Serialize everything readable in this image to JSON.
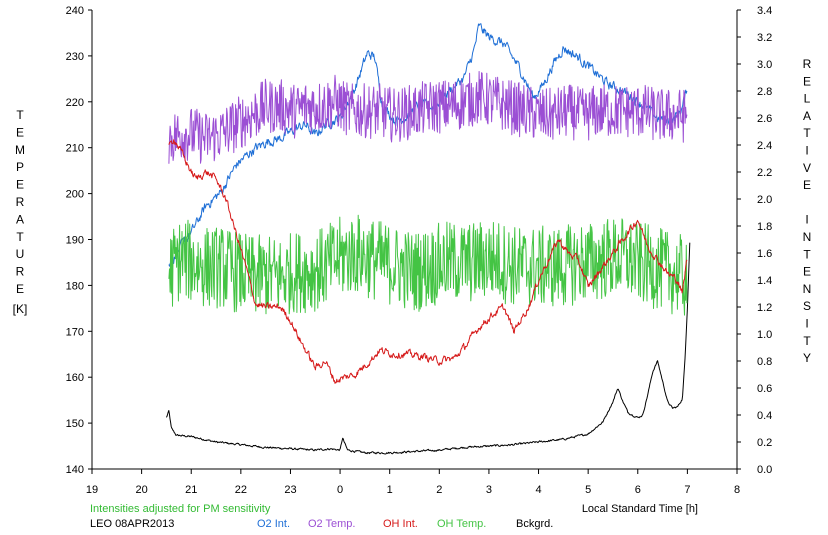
{
  "chart_data": {
    "type": "line",
    "left_axis": {
      "label": "TEMPERATURE",
      "unit": "[K]",
      "range": [
        140,
        240
      ],
      "ticks": [
        140,
        150,
        160,
        170,
        180,
        190,
        200,
        210,
        220,
        230,
        240
      ]
    },
    "right_axis": {
      "label": "RELATIVE INTENSITY",
      "range": [
        0.0,
        3.4
      ],
      "ticks": [
        "0.0",
        "0.2",
        "0.4",
        "0.6",
        "0.8",
        "1.0",
        "1.2",
        "1.4",
        "1.6",
        "1.8",
        "2.0",
        "2.2",
        "2.4",
        "2.6",
        "2.8",
        "3.0",
        "3.2",
        "3.4"
      ]
    },
    "x_axis": {
      "label": "Local Standard Time [h]",
      "range": [
        19,
        32
      ],
      "ticks": [
        19,
        20,
        21,
        22,
        23,
        24,
        25,
        26,
        27,
        28,
        29,
        30,
        31,
        32
      ],
      "tick_labels": [
        "19",
        "20",
        "21",
        "22",
        "23",
        "0",
        "1",
        "2",
        "3",
        "4",
        "5",
        "6",
        "7",
        "8"
      ]
    },
    "note": "Intensities adjusted for PM sensitivity",
    "caption": "LEO 08APR2013",
    "series": [
      {
        "name": "O2 Int.",
        "axis": "right",
        "color": "#1f6fd6",
        "noise": 0.03,
        "points": [
          [
            20.55,
            1.5
          ],
          [
            20.8,
            1.65
          ],
          [
            21.0,
            1.75
          ],
          [
            21.3,
            1.95
          ],
          [
            21.6,
            2.05
          ],
          [
            21.9,
            2.25
          ],
          [
            22.2,
            2.35
          ],
          [
            22.5,
            2.42
          ],
          [
            22.8,
            2.45
          ],
          [
            23.1,
            2.52
          ],
          [
            23.3,
            2.55
          ],
          [
            23.5,
            2.47
          ],
          [
            23.7,
            2.55
          ],
          [
            24.0,
            2.6
          ],
          [
            24.3,
            2.82
          ],
          [
            24.55,
            3.08
          ],
          [
            24.7,
            3.05
          ],
          [
            24.85,
            2.7
          ],
          [
            25.1,
            2.58
          ],
          [
            25.3,
            2.6
          ],
          [
            25.6,
            2.7
          ],
          [
            25.9,
            2.68
          ],
          [
            26.2,
            2.8
          ],
          [
            26.5,
            2.9
          ],
          [
            26.7,
            3.1
          ],
          [
            26.8,
            3.28
          ],
          [
            27.0,
            3.2
          ],
          [
            27.3,
            3.15
          ],
          [
            27.6,
            2.98
          ],
          [
            27.9,
            2.75
          ],
          [
            28.1,
            2.85
          ],
          [
            28.3,
            3.0
          ],
          [
            28.5,
            3.12
          ],
          [
            28.8,
            3.05
          ],
          [
            29.1,
            2.95
          ],
          [
            29.4,
            2.85
          ],
          [
            29.7,
            2.8
          ],
          [
            29.9,
            2.75
          ],
          [
            30.1,
            2.7
          ],
          [
            30.4,
            2.6
          ],
          [
            30.7,
            2.58
          ],
          [
            30.9,
            2.68
          ],
          [
            31.0,
            2.83
          ]
        ]
      },
      {
        "name": "O2 Temp.",
        "axis": "left",
        "color": "#9b4fd4",
        "noise": 6,
        "points": [
          [
            20.55,
            212
          ],
          [
            20.8,
            213
          ],
          [
            21.0,
            213
          ],
          [
            21.3,
            212
          ],
          [
            21.6,
            213
          ],
          [
            21.9,
            215
          ],
          [
            22.2,
            217
          ],
          [
            22.5,
            219
          ],
          [
            22.8,
            219
          ],
          [
            23.1,
            218
          ],
          [
            23.3,
            219
          ],
          [
            23.6,
            219
          ],
          [
            23.9,
            220
          ],
          [
            24.2,
            218
          ],
          [
            24.5,
            218
          ],
          [
            24.8,
            218
          ],
          [
            25.1,
            217
          ],
          [
            25.5,
            218
          ],
          [
            25.9,
            219
          ],
          [
            26.2,
            219
          ],
          [
            26.5,
            220
          ],
          [
            26.8,
            221
          ],
          [
            27.1,
            220
          ],
          [
            27.4,
            219
          ],
          [
            27.7,
            218
          ],
          [
            28.0,
            217
          ],
          [
            28.3,
            217
          ],
          [
            28.6,
            218
          ],
          [
            28.9,
            217
          ],
          [
            29.2,
            218
          ],
          [
            29.5,
            218
          ],
          [
            29.8,
            218
          ],
          [
            30.1,
            218
          ],
          [
            30.4,
            217
          ],
          [
            30.7,
            217
          ],
          [
            31.0,
            217
          ]
        ]
      },
      {
        "name": "OH Int.",
        "axis": "right",
        "color": "#d61a1a",
        "noise": 0.022,
        "points": [
          [
            20.55,
            2.38
          ],
          [
            20.65,
            2.45
          ],
          [
            20.8,
            2.35
          ],
          [
            21.0,
            2.2
          ],
          [
            21.1,
            2.15
          ],
          [
            21.3,
            2.2
          ],
          [
            21.5,
            2.15
          ],
          [
            21.7,
            2.0
          ],
          [
            21.9,
            1.75
          ],
          [
            22.1,
            1.5
          ],
          [
            22.3,
            1.22
          ],
          [
            22.5,
            1.2
          ],
          [
            22.8,
            1.2
          ],
          [
            23.0,
            1.1
          ],
          [
            23.2,
            0.95
          ],
          [
            23.4,
            0.82
          ],
          [
            23.5,
            0.75
          ],
          [
            23.7,
            0.8
          ],
          [
            23.9,
            0.65
          ],
          [
            24.1,
            0.68
          ],
          [
            24.3,
            0.7
          ],
          [
            24.6,
            0.8
          ],
          [
            24.8,
            0.88
          ],
          [
            25.1,
            0.85
          ],
          [
            25.4,
            0.85
          ],
          [
            25.7,
            0.83
          ],
          [
            26.0,
            0.8
          ],
          [
            26.3,
            0.82
          ],
          [
            26.5,
            0.9
          ],
          [
            26.8,
            1.05
          ],
          [
            27.1,
            1.15
          ],
          [
            27.3,
            1.2
          ],
          [
            27.5,
            1.02
          ],
          [
            27.8,
            1.2
          ],
          [
            28.0,
            1.4
          ],
          [
            28.2,
            1.55
          ],
          [
            28.4,
            1.7
          ],
          [
            28.6,
            1.6
          ],
          [
            28.8,
            1.55
          ],
          [
            29.0,
            1.35
          ],
          [
            29.2,
            1.45
          ],
          [
            29.4,
            1.55
          ],
          [
            29.6,
            1.65
          ],
          [
            29.8,
            1.75
          ],
          [
            30.0,
            1.85
          ],
          [
            30.2,
            1.65
          ],
          [
            30.4,
            1.55
          ],
          [
            30.6,
            1.45
          ],
          [
            30.8,
            1.4
          ],
          [
            30.9,
            1.3
          ],
          [
            31.0,
            1.58
          ]
        ]
      },
      {
        "name": "OH Temp.",
        "axis": "left",
        "color": "#44c444",
        "noise": 9,
        "points": [
          [
            20.55,
            183
          ],
          [
            20.8,
            186
          ],
          [
            21.0,
            185
          ],
          [
            21.3,
            184
          ],
          [
            21.6,
            184
          ],
          [
            21.9,
            183
          ],
          [
            22.2,
            182
          ],
          [
            22.5,
            182
          ],
          [
            22.8,
            182
          ],
          [
            23.1,
            183
          ],
          [
            23.4,
            183
          ],
          [
            23.7,
            184
          ],
          [
            24.0,
            186
          ],
          [
            24.3,
            187
          ],
          [
            24.6,
            186
          ],
          [
            24.9,
            185
          ],
          [
            25.2,
            184
          ],
          [
            25.5,
            183
          ],
          [
            25.8,
            184
          ],
          [
            26.1,
            185
          ],
          [
            26.4,
            185
          ],
          [
            26.7,
            185
          ],
          [
            27.0,
            186
          ],
          [
            27.3,
            185
          ],
          [
            27.6,
            184
          ],
          [
            27.9,
            184
          ],
          [
            28.2,
            184
          ],
          [
            28.5,
            184
          ],
          [
            28.8,
            185
          ],
          [
            29.1,
            185
          ],
          [
            29.4,
            186
          ],
          [
            29.7,
            186
          ],
          [
            30.0,
            185
          ],
          [
            30.3,
            184
          ],
          [
            30.6,
            183
          ],
          [
            30.9,
            182
          ],
          [
            31.0,
            181
          ]
        ]
      },
      {
        "name": "Bckgrd.",
        "axis": "right",
        "color": "#000000",
        "noise": 0.006,
        "points": [
          [
            20.5,
            0.38
          ],
          [
            20.55,
            0.43
          ],
          [
            20.6,
            0.3
          ],
          [
            20.7,
            0.25
          ],
          [
            21.0,
            0.24
          ],
          [
            21.5,
            0.2
          ],
          [
            22.0,
            0.18
          ],
          [
            22.5,
            0.16
          ],
          [
            23.0,
            0.15
          ],
          [
            23.5,
            0.14
          ],
          [
            23.8,
            0.15
          ],
          [
            24.0,
            0.14
          ],
          [
            24.05,
            0.23
          ],
          [
            24.15,
            0.14
          ],
          [
            24.5,
            0.12
          ],
          [
            25.0,
            0.12
          ],
          [
            25.5,
            0.13
          ],
          [
            26.0,
            0.14
          ],
          [
            26.5,
            0.16
          ],
          [
            27.0,
            0.17
          ],
          [
            27.5,
            0.18
          ],
          [
            28.0,
            0.2
          ],
          [
            28.5,
            0.22
          ],
          [
            29.0,
            0.26
          ],
          [
            29.3,
            0.35
          ],
          [
            29.5,
            0.5
          ],
          [
            29.6,
            0.6
          ],
          [
            29.7,
            0.5
          ],
          [
            29.8,
            0.42
          ],
          [
            30.0,
            0.38
          ],
          [
            30.1,
            0.4
          ],
          [
            30.2,
            0.55
          ],
          [
            30.3,
            0.72
          ],
          [
            30.4,
            0.8
          ],
          [
            30.5,
            0.65
          ],
          [
            30.6,
            0.5
          ],
          [
            30.7,
            0.45
          ],
          [
            30.8,
            0.46
          ],
          [
            30.9,
            0.52
          ],
          [
            30.95,
            0.8
          ],
          [
            31.0,
            1.2
          ],
          [
            31.05,
            1.7
          ]
        ]
      }
    ]
  }
}
